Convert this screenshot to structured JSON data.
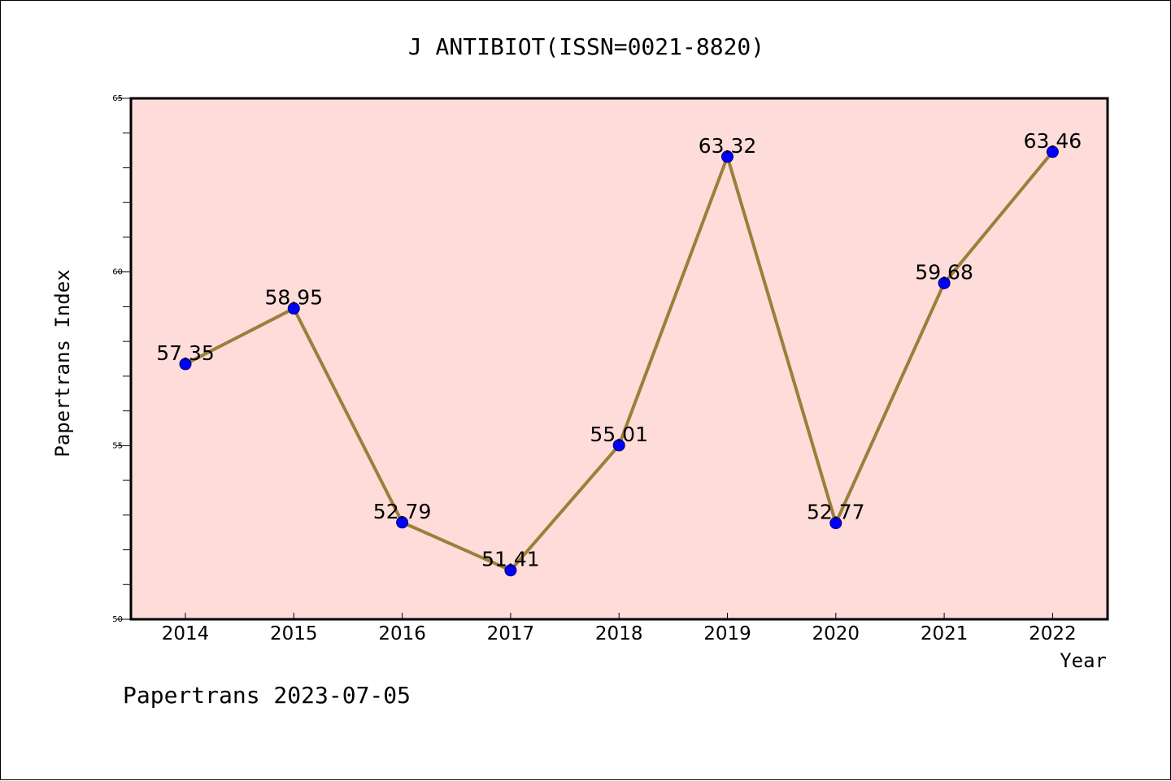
{
  "chart_data": {
    "type": "line",
    "title": "J ANTIBIOT(ISSN=0021-8820)",
    "xlabel": "Year",
    "ylabel": "Papertrans Index",
    "categories": [
      "2014",
      "2015",
      "2016",
      "2017",
      "2018",
      "2019",
      "2020",
      "2021",
      "2022"
    ],
    "series": [
      {
        "values": [
          57.35,
          58.95,
          52.79,
          51.41,
          55.01,
          63.32,
          52.77,
          59.68,
          63.46
        ],
        "labels": [
          "57.35",
          "58.95",
          "52.79",
          "51.41",
          "55.01",
          "63.32",
          "52.77",
          "59.68",
          "63.46"
        ]
      }
    ],
    "ylim": [
      50,
      65
    ],
    "yticks": [
      "50",
      "55",
      "60",
      "65"
    ],
    "y_minor_step": 1,
    "grid": false,
    "legend": "none",
    "colors": {
      "plot_background": "#fddcd9",
      "line": "#9b7f3a",
      "marker": "#0000ff",
      "marker_edge": "#000066"
    }
  },
  "footer": {
    "text": "Papertrans 2023-07-05"
  }
}
